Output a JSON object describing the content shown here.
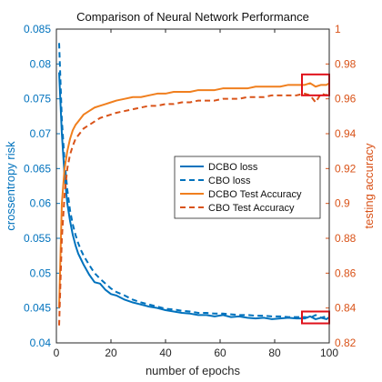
{
  "chart_data": {
    "type": "line",
    "title": "Comparison of Neural Network Performance",
    "xlabel": "number of epochs",
    "ylabel_left": "crossentropy risk",
    "ylabel_right": "testing accuracy",
    "xlim": [
      0,
      100
    ],
    "ylim_left": [
      0.04,
      0.085
    ],
    "ylim_right": [
      0.82,
      1.0
    ],
    "x_ticks": [
      "0",
      "20",
      "40",
      "60",
      "80",
      "100"
    ],
    "y_left_ticks": [
      "0.04",
      "0.045",
      "0.05",
      "0.055",
      "0.06",
      "0.065",
      "0.07",
      "0.075",
      "0.08",
      "0.085"
    ],
    "y_right_ticks": [
      "0.82",
      "0.84",
      "0.86",
      "0.88",
      "0.9",
      "0.92",
      "0.94",
      "0.96",
      "0.98",
      "1"
    ],
    "grid": false,
    "legend_position": "right-center",
    "colors": {
      "left_axis": "#0072BD",
      "right_axis": "#D95319",
      "dcbo_accuracy": "#F07F1E",
      "highlight_box": "#E0101A"
    },
    "series": [
      {
        "name": "DCBO loss",
        "axis": "left",
        "style": "solid",
        "x": [
          1,
          2,
          3,
          4,
          5,
          6,
          7,
          8,
          9,
          10,
          12,
          14,
          16,
          18,
          20,
          22,
          25,
          28,
          31,
          34,
          37,
          40,
          43,
          46,
          49,
          52,
          55,
          58,
          61,
          64,
          67,
          70,
          73,
          76,
          79,
          82,
          85,
          88,
          91,
          93,
          95,
          97,
          99,
          100
        ],
        "y": [
          0.0788,
          0.07,
          0.064,
          0.06,
          0.0575,
          0.0555,
          0.054,
          0.0528,
          0.052,
          0.0512,
          0.0498,
          0.0487,
          0.0485,
          0.0476,
          0.047,
          0.0468,
          0.0462,
          0.0458,
          0.0455,
          0.0452,
          0.045,
          0.0447,
          0.0445,
          0.0443,
          0.0442,
          0.044,
          0.044,
          0.0438,
          0.044,
          0.0437,
          0.0438,
          0.0436,
          0.0435,
          0.0436,
          0.0434,
          0.0435,
          0.0436,
          0.0435,
          0.0435,
          0.0438,
          0.0434,
          0.0436,
          0.0434,
          0.0437
        ]
      },
      {
        "name": "CBO loss",
        "axis": "left",
        "style": "dashed",
        "x": [
          1,
          2,
          3,
          4,
          5,
          6,
          7,
          8,
          9,
          10,
          12,
          14,
          16,
          18,
          20,
          22,
          25,
          28,
          31,
          34,
          37,
          40,
          43,
          46,
          49,
          52,
          55,
          58,
          61,
          64,
          67,
          70,
          73,
          76,
          79,
          82,
          85,
          88,
          91,
          93,
          95,
          97,
          99,
          100
        ],
        "y": [
          0.083,
          0.072,
          0.066,
          0.062,
          0.059,
          0.057,
          0.0555,
          0.0543,
          0.0533,
          0.0525,
          0.0512,
          0.05,
          0.0492,
          0.0485,
          0.0478,
          0.0473,
          0.0468,
          0.0462,
          0.0458,
          0.0455,
          0.0452,
          0.0449,
          0.0448,
          0.0446,
          0.0445,
          0.0443,
          0.0443,
          0.0442,
          0.0442,
          0.0441,
          0.044,
          0.044,
          0.0439,
          0.0439,
          0.0438,
          0.0438,
          0.0437,
          0.0437,
          0.0437,
          0.0436,
          0.044,
          0.0436,
          0.0438,
          0.0437
        ]
      },
      {
        "name": "DCBO Test Accuracy",
        "axis": "right",
        "style": "solid",
        "x": [
          1,
          2,
          3,
          4,
          5,
          6,
          7,
          8,
          9,
          10,
          12,
          14,
          16,
          18,
          20,
          22,
          25,
          28,
          31,
          34,
          37,
          40,
          43,
          46,
          49,
          52,
          55,
          58,
          61,
          64,
          67,
          70,
          73,
          76,
          79,
          82,
          85,
          88,
          91,
          93,
          95,
          97,
          99,
          100
        ],
        "y": [
          0.84,
          0.9,
          0.92,
          0.93,
          0.937,
          0.942,
          0.945,
          0.947,
          0.949,
          0.951,
          0.953,
          0.955,
          0.956,
          0.957,
          0.958,
          0.959,
          0.96,
          0.961,
          0.961,
          0.962,
          0.963,
          0.963,
          0.964,
          0.964,
          0.964,
          0.965,
          0.965,
          0.965,
          0.966,
          0.966,
          0.966,
          0.966,
          0.967,
          0.967,
          0.967,
          0.967,
          0.968,
          0.968,
          0.968,
          0.969,
          0.967,
          0.968,
          0.968,
          0.969
        ]
      },
      {
        "name": "CBO Test Accuracy",
        "axis": "right",
        "style": "dashed",
        "x": [
          1,
          2,
          3,
          4,
          5,
          6,
          7,
          8,
          9,
          10,
          12,
          14,
          16,
          18,
          20,
          22,
          25,
          28,
          31,
          34,
          37,
          40,
          43,
          46,
          49,
          52,
          55,
          58,
          61,
          64,
          67,
          70,
          73,
          76,
          79,
          82,
          85,
          88,
          91,
          93,
          95,
          97,
          99,
          100
        ],
        "y": [
          0.83,
          0.88,
          0.905,
          0.92,
          0.928,
          0.933,
          0.937,
          0.939,
          0.941,
          0.943,
          0.945,
          0.947,
          0.949,
          0.95,
          0.951,
          0.952,
          0.953,
          0.954,
          0.955,
          0.956,
          0.956,
          0.957,
          0.957,
          0.958,
          0.958,
          0.959,
          0.959,
          0.959,
          0.96,
          0.96,
          0.96,
          0.961,
          0.961,
          0.961,
          0.962,
          0.962,
          0.962,
          0.962,
          0.963,
          0.962,
          0.958,
          0.963,
          0.962,
          0.965
        ]
      }
    ],
    "highlight_boxes": [
      {
        "axis": "right",
        "x_range": [
          90,
          100
        ],
        "y_range": [
          0.962,
          0.974
        ]
      },
      {
        "axis": "left",
        "x_range": [
          90,
          100
        ],
        "y_range": [
          0.0428,
          0.0445
        ]
      }
    ]
  }
}
